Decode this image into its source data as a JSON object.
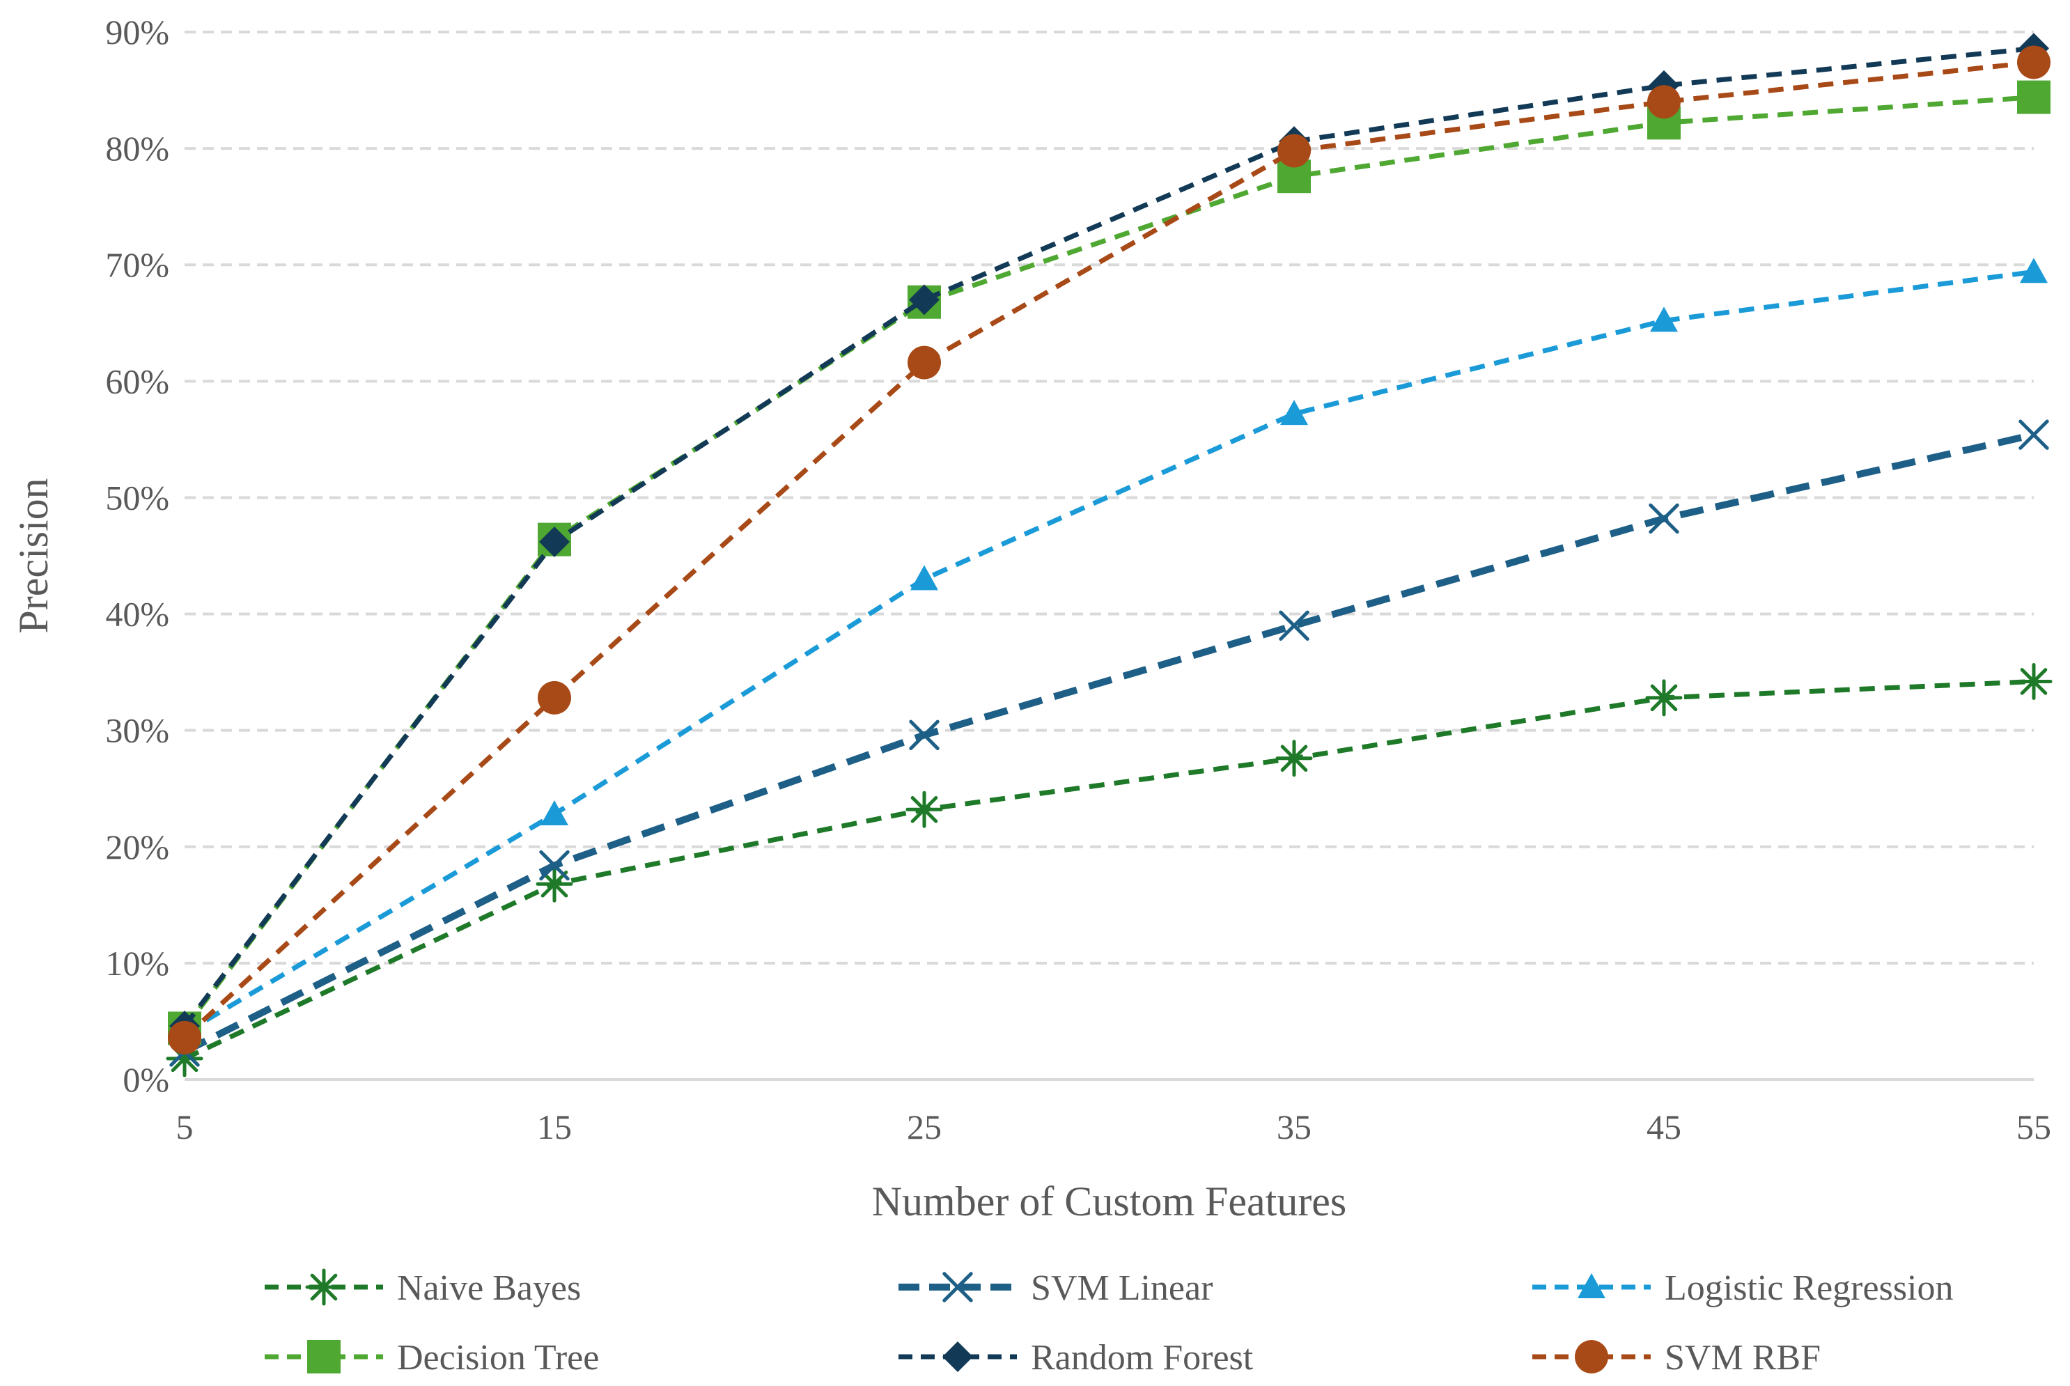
{
  "chart_data": {
    "type": "line",
    "title": "",
    "xlabel": "Number of Custom Features",
    "ylabel": "Precision",
    "x": [
      5,
      15,
      25,
      35,
      45,
      55
    ],
    "x_tick_labels": [
      "5",
      "15",
      "25",
      "35",
      "45",
      "55"
    ],
    "y_tick_values": [
      0,
      10,
      20,
      30,
      40,
      50,
      60,
      70,
      80,
      90
    ],
    "y_tick_labels": [
      "0%",
      "10%",
      "20%",
      "30%",
      "40%",
      "50%",
      "60%",
      "70%",
      "80%",
      "90%"
    ],
    "ylim": [
      0,
      90
    ],
    "grid": "horizontal dashed",
    "legend_position": "bottom",
    "series": [
      {
        "name": "Naive Bayes",
        "color": "#1e7a28",
        "marker": "asterisk",
        "dash": "dashed",
        "values": [
          1.8,
          16.8,
          23.2,
          27.6,
          32.8,
          34.2
        ]
      },
      {
        "name": "SVM Linear",
        "color": "#1d5f86",
        "marker": "x",
        "dash": "long-dashed",
        "values": [
          2.4,
          18.4,
          29.6,
          39.0,
          48.2,
          55.4
        ]
      },
      {
        "name": "Logistic Regression",
        "color": "#1a9bd8",
        "marker": "triangle",
        "dash": "dashed",
        "values": [
          4.0,
          22.8,
          43.0,
          57.2,
          65.2,
          69.4
        ]
      },
      {
        "name": "Decision Tree",
        "color": "#4fa831",
        "marker": "square",
        "dash": "dashed",
        "values": [
          4.4,
          46.4,
          66.8,
          77.6,
          82.2,
          84.4
        ]
      },
      {
        "name": "Random Forest",
        "color": "#123a56",
        "marker": "diamond",
        "dash": "dashed",
        "values": [
          4.6,
          46.2,
          67.0,
          80.6,
          85.4,
          88.6
        ]
      },
      {
        "name": "SVM RBF",
        "color": "#a84a17",
        "marker": "circle",
        "dash": "dashed",
        "values": [
          3.6,
          32.8,
          61.6,
          79.8,
          84.0,
          87.4
        ]
      }
    ]
  }
}
